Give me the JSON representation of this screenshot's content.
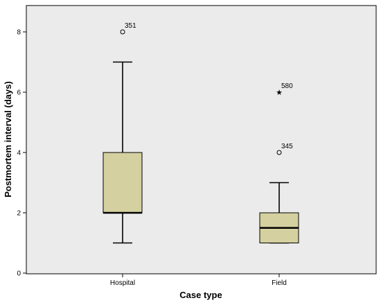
{
  "chart_data": {
    "type": "boxplot",
    "xlabel": "Case type",
    "ylabel": "Postmortem interval (days)",
    "ylim": [
      0,
      9
    ],
    "yticks": [
      0,
      2,
      4,
      6,
      8
    ],
    "grid": false,
    "legend": "none",
    "categories": [
      "Hospital",
      "Field"
    ],
    "boxes": [
      {
        "category": "Hospital",
        "whisker_low": 1,
        "q1": 2,
        "median": 2,
        "q3": 4,
        "whisker_high": 7,
        "outliers": [
          {
            "value": 8,
            "label": "351",
            "marker": "circle"
          }
        ]
      },
      {
        "category": "Field",
        "whisker_low": 1,
        "q1": 1,
        "median": 1.5,
        "q3": 2,
        "whisker_high": 3,
        "outliers": [
          {
            "value": 6,
            "label": "580",
            "marker": "star"
          },
          {
            "value": 4,
            "label": "345",
            "marker": "circle"
          }
        ]
      }
    ],
    "colors": {
      "plot_background": "#ebebeb",
      "box_fill": "#d5d0a0",
      "stroke": "#000000"
    }
  }
}
